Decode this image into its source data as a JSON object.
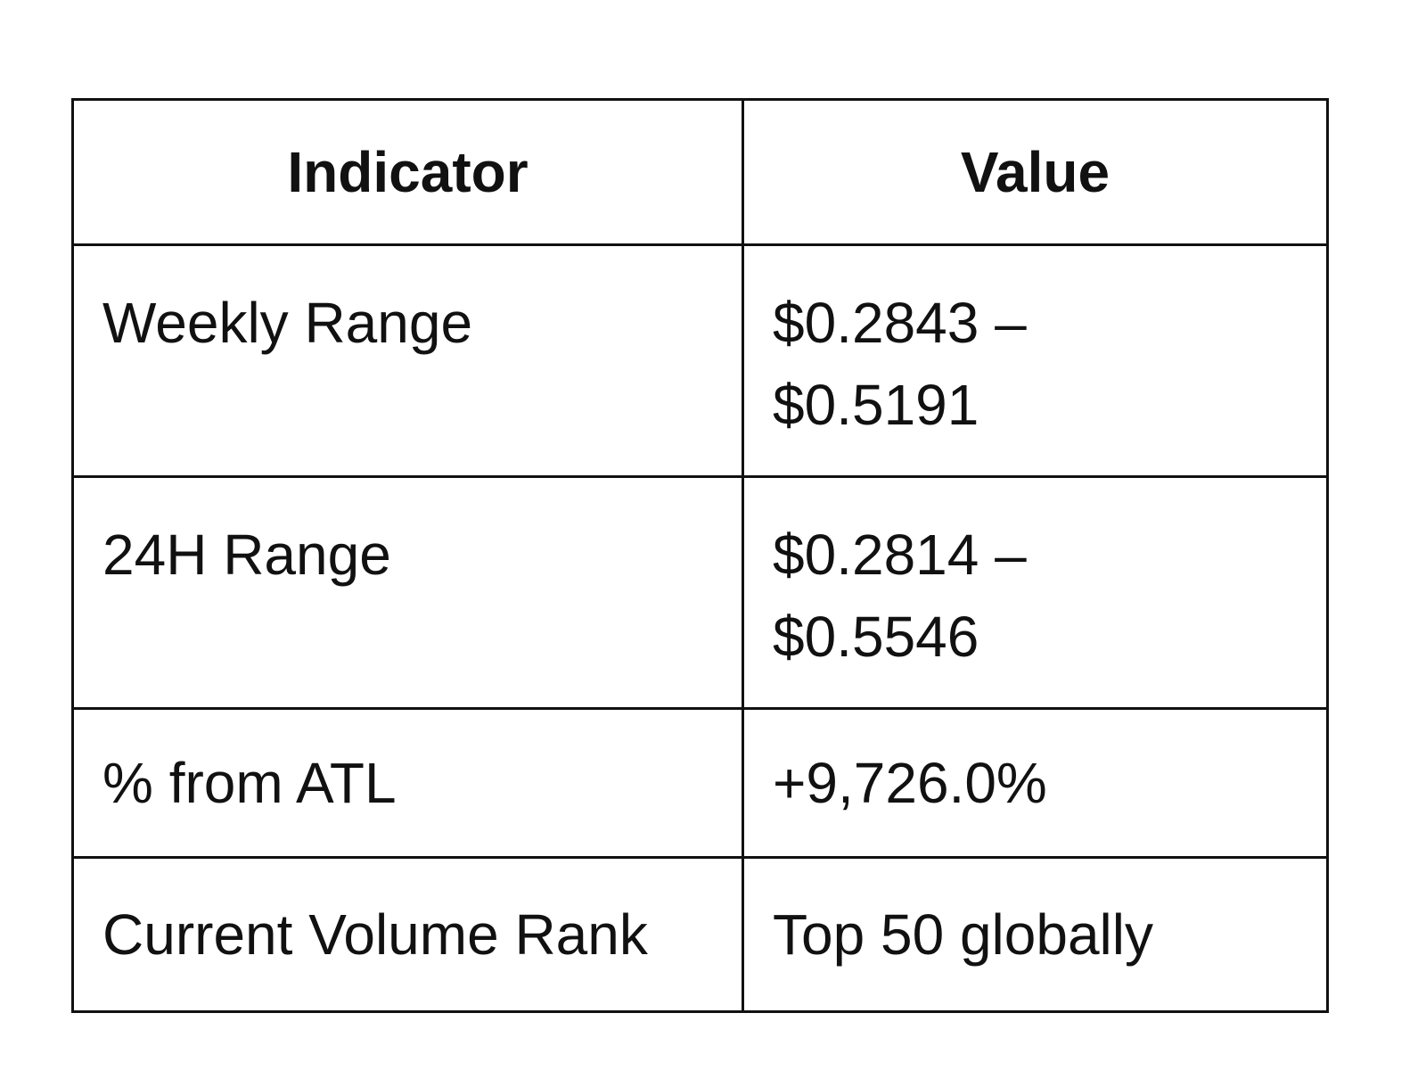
{
  "table": {
    "headers": [
      "Indicator",
      "Value"
    ],
    "rows": [
      {
        "indicator": "Weekly Range",
        "value_line1": "$0.2843 –",
        "value_line2": "$0.5191"
      },
      {
        "indicator": "24H Range",
        "value_line1": "$0.2814 –",
        "value_line2": "$0.5546"
      },
      {
        "indicator": "% from ATL",
        "value_line1": "+9,726.0%"
      },
      {
        "indicator": "Current Volume Rank",
        "value_line1": "Top 50 globally"
      }
    ]
  }
}
